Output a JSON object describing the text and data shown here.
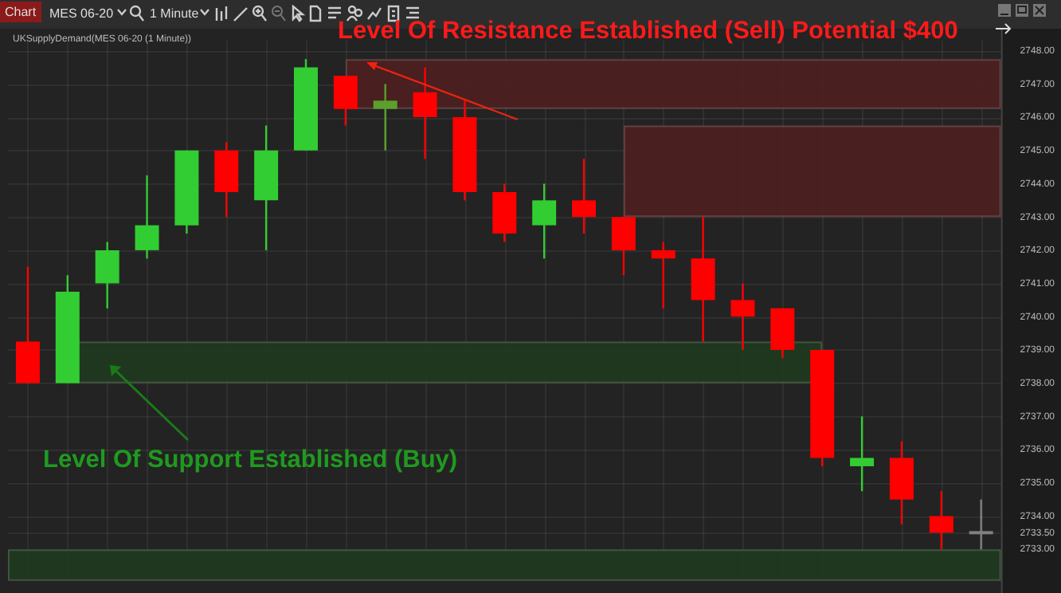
{
  "chart_data": {
    "type": "candlestick",
    "title": "UKSupplyDemand(MES 06-20 (1 Minute))",
    "categories": [
      null,
      null,
      null,
      null,
      null,
      null,
      null,
      null,
      null,
      null,
      null,
      null,
      null,
      null,
      null,
      null,
      null,
      null,
      null,
      null,
      null,
      null,
      null,
      null,
      null
    ],
    "ohlc": [
      [
        2739.25,
        2741.5,
        2738,
        2738
      ],
      [
        2738,
        2741.25,
        2738,
        2740.75
      ],
      [
        2741,
        2742.25,
        2740.25,
        2742
      ],
      [
        2742,
        2744.25,
        2741.75,
        2742.75
      ],
      [
        2742.75,
        2745,
        2742.5,
        2745
      ],
      [
        2745,
        2745.25,
        2743,
        2743.75
      ],
      [
        2743.5,
        2745.75,
        2742,
        2745
      ],
      [
        2745,
        2747.75,
        2745,
        2747.5
      ],
      [
        2747.25,
        2747.25,
        2745.75,
        2746.25
      ],
      [
        2746.25,
        2747,
        2745,
        2746.5
      ],
      [
        2746.75,
        2747.5,
        2744.75,
        2746
      ],
      [
        2746,
        2746.5,
        2743.5,
        2743.75
      ],
      [
        2743.75,
        2744,
        2742.25,
        2742.5
      ],
      [
        2742.75,
        2744,
        2741.75,
        2743.5
      ],
      [
        2743.5,
        2744.75,
        2742.5,
        2743
      ],
      [
        2743,
        2743,
        2741.25,
        2742
      ],
      [
        2742,
        2742.25,
        2740.25,
        2741.75
      ],
      [
        2741.75,
        2743,
        2739.25,
        2740.5
      ],
      [
        2740.5,
        2741,
        2739,
        2740
      ],
      [
        2740.25,
        2740.25,
        2738.75,
        2739
      ],
      [
        2739,
        2739,
        2735.5,
        2735.75
      ],
      [
        2735.5,
        2737,
        2734.75,
        2735.75
      ],
      [
        2735.75,
        2736.25,
        2733.75,
        2734.5
      ],
      [
        2734,
        2734.75,
        2733,
        2733.5
      ],
      [
        2733.5,
        2734.5,
        2733,
        2733.5
      ]
    ],
    "colors": [
      "#ff0000",
      "#32cd32",
      "#32cd32",
      "#32cd32",
      "#32cd32",
      "#ff0000",
      "#32cd32",
      "#32cd32",
      "#ff0000",
      "#5aa02c",
      "#ff0000",
      "#ff0000",
      "#ff0000",
      "#32cd32",
      "#ff0000",
      "#ff0000",
      "#ff0000",
      "#ff0000",
      "#ff0000",
      "#ff0000",
      "#ff0000",
      "#32cd32",
      "#ff0000",
      "#ff0000",
      "#808080"
    ],
    "ylim": [
      2732.05,
      2748.3
    ],
    "yticks": [
      {
        "value": 2733,
        "label": "2733.00"
      },
      {
        "value": 2733.5,
        "label": "2733.50"
      },
      {
        "value": 2734,
        "label": "2734.00"
      },
      {
        "value": 2735,
        "label": "2735.00"
      },
      {
        "value": 2736,
        "label": "2736.00"
      },
      {
        "value": 2737,
        "label": "2737.00"
      },
      {
        "value": 2738,
        "label": "2738.00"
      },
      {
        "value": 2739,
        "label": "2739.00"
      },
      {
        "value": 2740,
        "label": "2740.00"
      },
      {
        "value": 2741,
        "label": "2741.00"
      },
      {
        "value": 2742,
        "label": "2742.00"
      },
      {
        "value": 2743,
        "label": "2743.00"
      },
      {
        "value": 2744,
        "label": "2744.00"
      },
      {
        "value": 2745,
        "label": "2745.00"
      },
      {
        "value": 2746,
        "label": "2746.00"
      },
      {
        "value": 2747,
        "label": "2747.00"
      },
      {
        "value": 2748,
        "label": "2748.00"
      }
    ],
    "bands": [
      {
        "axis": "y",
        "from": 2746.25,
        "to": 2747.75,
        "color": "#4e1f20"
      },
      {
        "axis": "y",
        "from": 2743,
        "to": 2745.75,
        "color": "#4e1f20"
      },
      {
        "axis": "y",
        "from": 2738,
        "to": 2739.25,
        "color": "#1f3a1f"
      },
      {
        "axis": "y",
        "from": 2732.05,
        "to": 2733,
        "color": "#1f3a1f"
      }
    ],
    "annotations": [
      "Level Of Resistance Established (Sell) Potential $400",
      "Level Of Support Established (Buy)",
      "Chart",
      "MES 06-20",
      "1 Minute"
    ],
    "grid": true,
    "legend": false,
    "tick_labels": "y"
  }
}
